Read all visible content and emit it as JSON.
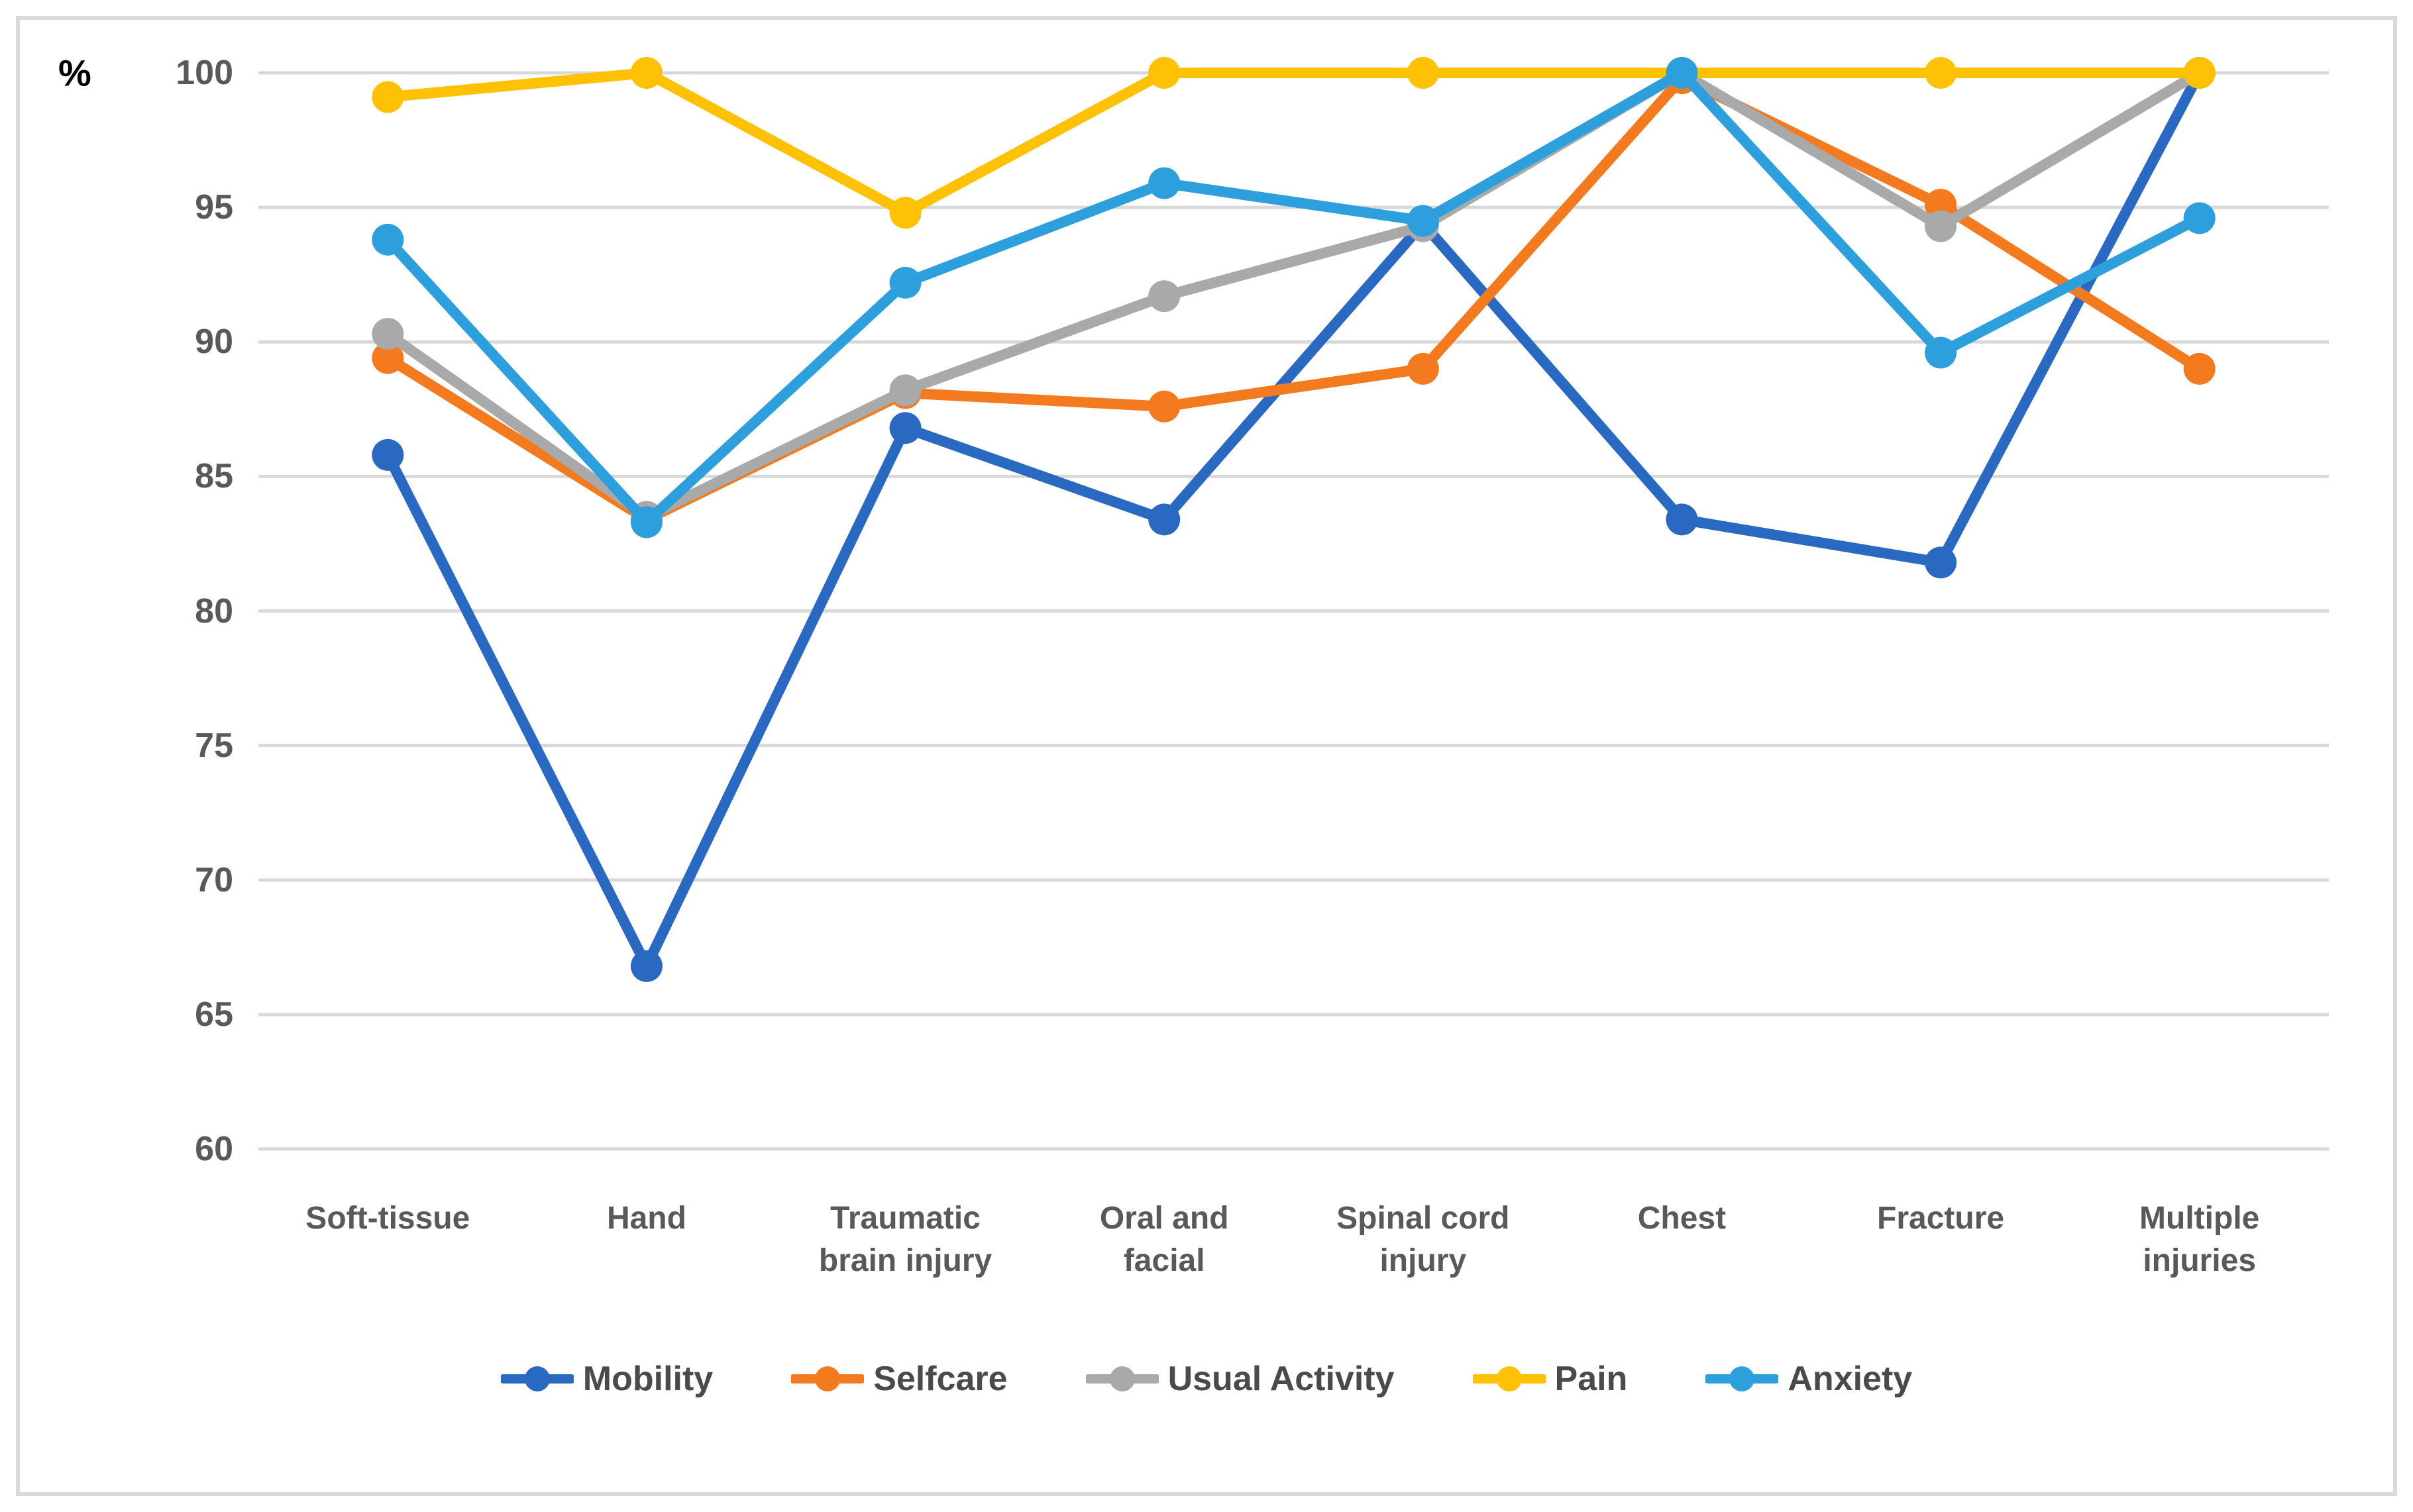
{
  "chart_data": {
    "type": "line",
    "title": "",
    "ylabel": "%",
    "ylim": [
      60,
      100
    ],
    "yticks": [
      100,
      95,
      90,
      85,
      80,
      75,
      70,
      65,
      60
    ],
    "grid": "horizontal",
    "legend_position": "bottom",
    "categories": [
      "Soft-tissue",
      "Hand",
      "Traumatic\nbrain injury",
      "Oral and\nfacial",
      "Spinal cord\ninjury",
      "Chest",
      "Fracture",
      "Multiple\ninjuries"
    ],
    "series": [
      {
        "name": "Mobility",
        "color": "#2A69C2",
        "values": [
          85.8,
          66.8,
          86.8,
          83.4,
          94.4,
          83.4,
          81.8,
          100
        ]
      },
      {
        "name": "Selfcare",
        "color": "#F47A20",
        "values": [
          89.4,
          83.4,
          88.1,
          87.6,
          89.0,
          99.8,
          95.1,
          89.0
        ]
      },
      {
        "name": "Usual Activity",
        "color": "#A9A9A9",
        "values": [
          90.3,
          83.5,
          88.2,
          91.7,
          94.3,
          100,
          94.3,
          100
        ]
      },
      {
        "name": "Pain",
        "color": "#FFC103",
        "values": [
          99.1,
          100,
          94.8,
          100,
          100,
          100,
          100,
          100
        ]
      },
      {
        "name": "Anxiety",
        "color": "#2E9FDD",
        "values": [
          93.8,
          83.3,
          92.2,
          95.9,
          94.5,
          100,
          89.6,
          94.6
        ]
      }
    ]
  },
  "axis": {
    "percent_symbol": "%"
  },
  "frame": {
    "border_color": "#D9D9D9",
    "gridline_color": "#D9D9D9"
  }
}
